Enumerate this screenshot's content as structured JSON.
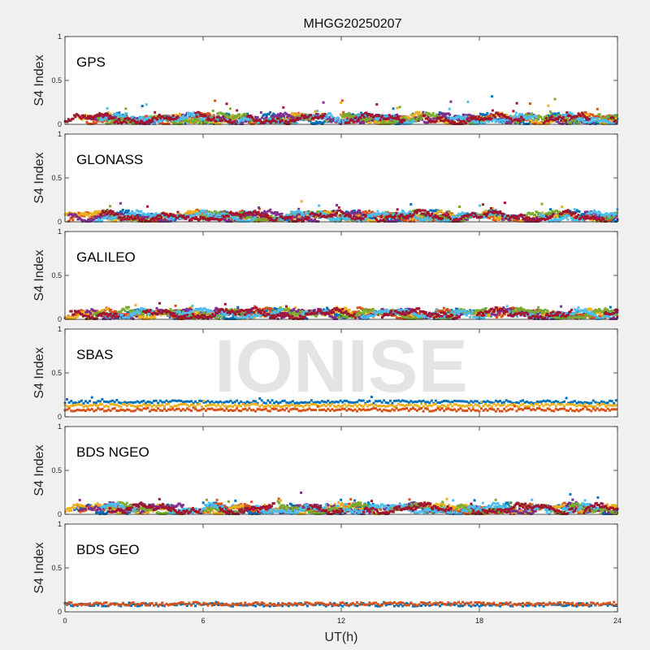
{
  "title": "MHGG20250207",
  "xlabel": "UT(h)",
  "ylabel": "S4 Index",
  "watermark": "IONISE",
  "x_ticks": [
    "0",
    "6",
    "12",
    "18",
    "24"
  ],
  "y_ticks": [
    "0",
    "0.5",
    "1"
  ],
  "colors": {
    "background": "#f0f0f0",
    "axes": "#ffffff",
    "series_palette": [
      "#0072BD",
      "#D95319",
      "#EDB120",
      "#7E2F8E",
      "#77AC30",
      "#4DBEEE",
      "#A2142F"
    ]
  },
  "chart_data": [
    {
      "type": "scatter",
      "panel_label": "GPS",
      "xlim": [
        0,
        24
      ],
      "ylim": [
        0,
        1
      ],
      "x_unit": "UT hours",
      "summary": {
        "typical_s4": [
          0.02,
          0.12
        ],
        "max_s4": 0.34
      },
      "series_count": 7
    },
    {
      "type": "scatter",
      "panel_label": "GLONASS",
      "xlim": [
        0,
        24
      ],
      "ylim": [
        0,
        1
      ],
      "x_unit": "UT hours",
      "summary": {
        "typical_s4": [
          0.02,
          0.12
        ],
        "max_s4": 0.28
      },
      "series_count": 7
    },
    {
      "type": "scatter",
      "panel_label": "GALILEO",
      "xlim": [
        0,
        24
      ],
      "ylim": [
        0,
        1
      ],
      "x_unit": "UT hours",
      "summary": {
        "typical_s4": [
          0.03,
          0.15
        ],
        "max_s4": 0.24
      },
      "series_count": 7
    },
    {
      "type": "scatter",
      "panel_label": "SBAS",
      "xlim": [
        0,
        24
      ],
      "ylim": [
        0,
        1
      ],
      "x_unit": "UT hours",
      "series": [
        {
          "color": "#0072BD",
          "level": 0.17
        },
        {
          "color": "#EDB120",
          "level": 0.13
        },
        {
          "color": "#D95319",
          "level": 0.08
        }
      ],
      "summary": {
        "max_s4": 0.26
      }
    },
    {
      "type": "scatter",
      "panel_label": "BDS NGEO",
      "xlim": [
        0,
        24
      ],
      "ylim": [
        0,
        1
      ],
      "x_unit": "UT hours",
      "summary": {
        "typical_s4": [
          0.02,
          0.12
        ],
        "max_s4": 0.26
      },
      "series_count": 7
    },
    {
      "type": "scatter",
      "panel_label": "BDS GEO",
      "xlim": [
        0,
        24
      ],
      "ylim": [
        0,
        1
      ],
      "x_unit": "UT hours",
      "series": [
        {
          "color": "#0072BD",
          "level": 0.08
        },
        {
          "color": "#D95319",
          "level": 0.09
        }
      ],
      "summary": {
        "max_s4": 0.11
      }
    }
  ]
}
